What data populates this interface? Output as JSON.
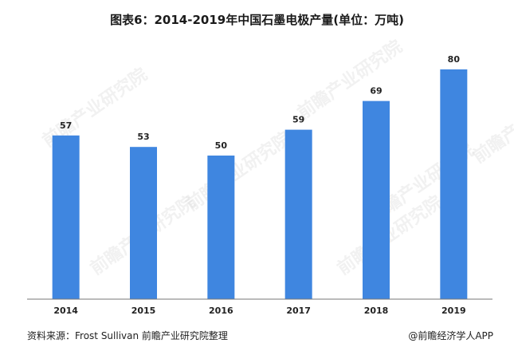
{
  "title": "图表6：2014-2019年中国石墨电极产量(单位：万吨)",
  "footer": {
    "source": "资料来源：Frost Sullivan  前瞻产业研究院整理",
    "brand": "@前瞻经济学人APP"
  },
  "watermark_text": "前瞻产业研究院",
  "colors": {
    "bar": "#3f86e0",
    "axis": "#777777"
  },
  "chart_data": {
    "type": "bar",
    "categories": [
      "2014",
      "2015",
      "2016",
      "2017",
      "2018",
      "2019"
    ],
    "values": [
      57,
      53,
      50,
      59,
      69,
      80
    ],
    "title": "图表6：2014-2019年中国石墨电极产量(单位：万吨)",
    "xlabel": "",
    "ylabel": "",
    "ylim": [
      0,
      85
    ],
    "grid": false,
    "data_labels": true
  }
}
